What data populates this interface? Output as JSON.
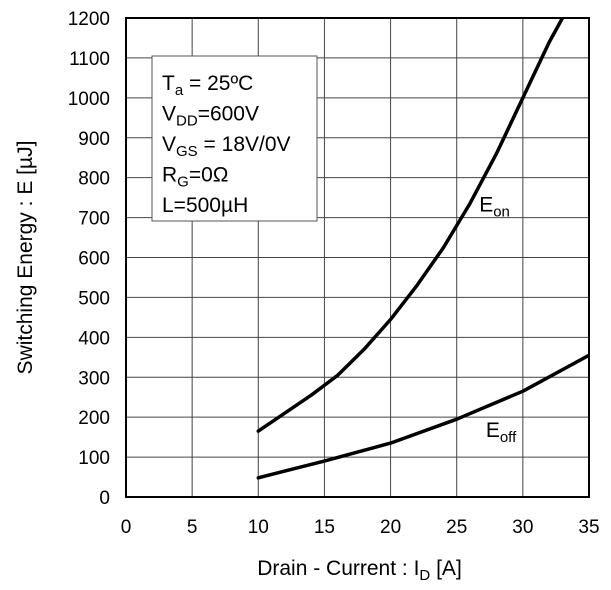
{
  "chart_data": {
    "type": "line",
    "xlabel": {
      "main": "Drain - Current : I",
      "sub": "D",
      "unit": " [A]"
    },
    "ylabel": "Switching Energy : E [µJ]",
    "xlim": [
      0,
      35
    ],
    "ylim": [
      0,
      1200
    ],
    "x_ticks": [
      "0",
      "5",
      "10",
      "15",
      "20",
      "25",
      "30",
      "35"
    ],
    "y_ticks": [
      "0",
      "100",
      "200",
      "300",
      "400",
      "500",
      "600",
      "700",
      "800",
      "900",
      "1000",
      "1100",
      "1200"
    ],
    "grid": true,
    "conditions": [
      {
        "main": "T",
        "sub": "a",
        "rest": " = 25ºC"
      },
      {
        "main": "V",
        "sub": "DD",
        "rest": "=600V"
      },
      {
        "main": "V",
        "sub": "GS",
        "rest": " = 18V/0V"
      },
      {
        "main": "R",
        "sub": "G",
        "rest": "=0Ω"
      },
      {
        "main": "L=500µH",
        "sub": "",
        "rest": ""
      }
    ],
    "series": [
      {
        "name": "Eon",
        "label_main": "E",
        "label_sub": "on",
        "x": [
          10,
          12,
          14,
          16,
          18,
          20,
          22,
          24,
          26,
          28,
          30,
          32,
          33
        ],
        "y": [
          165,
          210,
          255,
          305,
          370,
          445,
          530,
          625,
          735,
          860,
          1000,
          1140,
          1200
        ]
      },
      {
        "name": "Eoff",
        "label_main": "E",
        "label_sub": "off",
        "x": [
          10,
          12,
          15,
          20,
          25,
          30,
          35
        ],
        "y": [
          48,
          65,
          90,
          135,
          195,
          265,
          355
        ]
      }
    ]
  }
}
